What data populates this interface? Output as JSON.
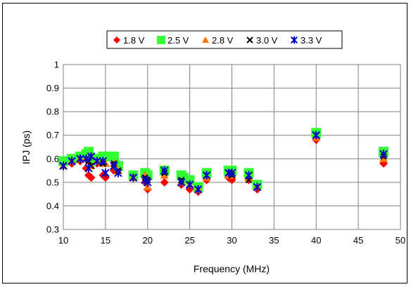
{
  "chart_data": {
    "type": "scatter",
    "title": "",
    "xlabel": "Frequency (MHz)",
    "ylabel": "IPJ (ps)",
    "xlim": [
      10,
      50
    ],
    "ylim": [
      0.3,
      1
    ],
    "x_ticks": [
      "10",
      "15",
      "20",
      "25",
      "30",
      "35",
      "40",
      "45",
      "50"
    ],
    "y_ticks": [
      "0.3",
      "0.4",
      "0.5",
      "0.6",
      "0.7",
      "0.8",
      "0.9",
      "1"
    ],
    "grid": true,
    "legend_position": "top",
    "series": [
      {
        "name": "1.8 V",
        "marker": "diamond",
        "color": "#ff0000",
        "points": [
          [
            10,
            0.58
          ],
          [
            11,
            0.58
          ],
          [
            12,
            0.59
          ],
          [
            12.7,
            0.56
          ],
          [
            13,
            0.53
          ],
          [
            13.3,
            0.52
          ],
          [
            14,
            0.58
          ],
          [
            14.7,
            0.53
          ],
          [
            15,
            0.52
          ],
          [
            16,
            0.55
          ],
          [
            18.3,
            0.52
          ],
          [
            19.7,
            0.5
          ],
          [
            20,
            0.47
          ],
          [
            22,
            0.5
          ],
          [
            24,
            0.49
          ],
          [
            25,
            0.47
          ],
          [
            26,
            0.46
          ],
          [
            27,
            0.51
          ],
          [
            29.6,
            0.52
          ],
          [
            30,
            0.51
          ],
          [
            32,
            0.51
          ],
          [
            33,
            0.47
          ],
          [
            40,
            0.68
          ],
          [
            48,
            0.58
          ]
        ]
      },
      {
        "name": "2.5 V",
        "marker": "square",
        "color": "#33ff33",
        "points": [
          [
            10,
            0.59
          ],
          [
            11,
            0.6
          ],
          [
            12,
            0.61
          ],
          [
            12.7,
            0.62
          ],
          [
            13,
            0.63
          ],
          [
            13.3,
            0.59
          ],
          [
            14,
            0.6
          ],
          [
            14.7,
            0.61
          ],
          [
            15,
            0.61
          ],
          [
            16,
            0.61
          ],
          [
            16.5,
            0.57
          ],
          [
            18.3,
            0.53
          ],
          [
            19.7,
            0.54
          ],
          [
            20,
            0.53
          ],
          [
            22,
            0.55
          ],
          [
            24,
            0.53
          ],
          [
            24.3,
            0.52
          ],
          [
            25,
            0.51
          ],
          [
            26,
            0.48
          ],
          [
            27,
            0.54
          ],
          [
            29.6,
            0.55
          ],
          [
            30,
            0.55
          ],
          [
            32,
            0.54
          ],
          [
            33,
            0.49
          ],
          [
            40,
            0.71
          ],
          [
            48,
            0.63
          ]
        ]
      },
      {
        "name": "2.8 V",
        "marker": "triangle",
        "color": "#ff7700",
        "points": [
          [
            10,
            0.57
          ],
          [
            11,
            0.59
          ],
          [
            12,
            0.6
          ],
          [
            12.7,
            0.6
          ],
          [
            13,
            0.58
          ],
          [
            13.3,
            0.57
          ],
          [
            14,
            0.59
          ],
          [
            14.7,
            0.58
          ],
          [
            15,
            0.58
          ],
          [
            16,
            0.58
          ],
          [
            16.5,
            0.55
          ],
          [
            18.3,
            0.52
          ],
          [
            19.7,
            0.53
          ],
          [
            20,
            0.48
          ],
          [
            22,
            0.53
          ],
          [
            24,
            0.5
          ],
          [
            25,
            0.49
          ],
          [
            26,
            0.47
          ],
          [
            27,
            0.52
          ],
          [
            29.6,
            0.53
          ],
          [
            30,
            0.53
          ],
          [
            32,
            0.52
          ],
          [
            33,
            0.48
          ],
          [
            40,
            0.69
          ],
          [
            48,
            0.6
          ]
        ]
      },
      {
        "name": "3.0 V",
        "marker": "x",
        "color": "#000000",
        "points": [
          [
            10,
            0.57
          ],
          [
            11,
            0.59
          ],
          [
            12,
            0.6
          ],
          [
            12.7,
            0.6
          ],
          [
            13,
            0.59
          ],
          [
            13.3,
            0.57
          ],
          [
            14,
            0.59
          ],
          [
            14.7,
            0.58
          ],
          [
            15,
            0.54
          ],
          [
            16,
            0.58
          ],
          [
            16.5,
            0.55
          ],
          [
            18.3,
            0.52
          ],
          [
            19.7,
            0.52
          ],
          [
            20,
            0.51
          ],
          [
            22,
            0.54
          ],
          [
            24,
            0.51
          ],
          [
            25,
            0.49
          ],
          [
            26,
            0.47
          ],
          [
            27,
            0.53
          ],
          [
            29.6,
            0.54
          ],
          [
            30,
            0.53
          ],
          [
            32,
            0.51
          ],
          [
            33,
            0.48
          ],
          [
            40,
            0.7
          ],
          [
            48,
            0.61
          ]
        ]
      },
      {
        "name": "3.3 V",
        "marker": "asterisk",
        "color": "#0000cc",
        "points": [
          [
            10,
            0.57
          ],
          [
            11,
            0.59
          ],
          [
            12,
            0.6
          ],
          [
            12.7,
            0.6
          ],
          [
            13,
            0.56
          ],
          [
            13.3,
            0.61
          ],
          [
            14,
            0.59
          ],
          [
            14.7,
            0.59
          ],
          [
            15,
            0.54
          ],
          [
            16,
            0.57
          ],
          [
            16.5,
            0.54
          ],
          [
            18.3,
            0.52
          ],
          [
            19.7,
            0.51
          ],
          [
            20,
            0.5
          ],
          [
            22,
            0.55
          ],
          [
            24,
            0.5
          ],
          [
            25,
            0.49
          ],
          [
            26,
            0.47
          ],
          [
            27,
            0.53
          ],
          [
            29.6,
            0.54
          ],
          [
            30,
            0.54
          ],
          [
            32,
            0.53
          ],
          [
            33,
            0.48
          ],
          [
            40,
            0.7
          ],
          [
            48,
            0.62
          ]
        ]
      }
    ]
  }
}
